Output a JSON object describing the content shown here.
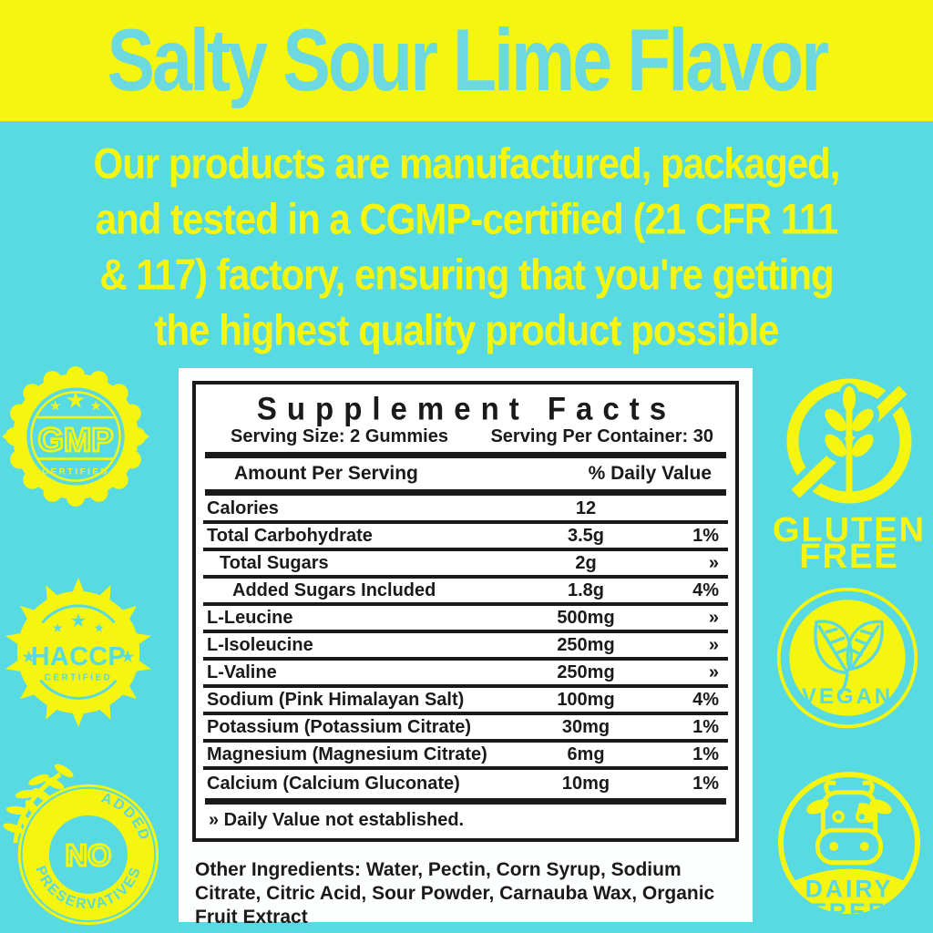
{
  "title": "Salty Sour Lime Flavor",
  "description_lines": [
    "Our products are manufactured, packaged,",
    "and tested in a CGMP-certified (21 CFR 111",
    "& 117) factory, ensuring that you're getting",
    "the highest quality product possible"
  ],
  "supplement_facts": {
    "title": "Supplement Facts",
    "serving_size": "Serving Size: 2 Gummies",
    "serving_per_container": "Serving Per Container: 30",
    "col_amount": "Amount Per Serving",
    "col_dv": "% Daily Value",
    "rows": [
      {
        "name": "Calories",
        "amount": "12",
        "dv": "",
        "indent": 0
      },
      {
        "name": "Total Carbohydrate",
        "amount": "3.5g",
        "dv": "1%",
        "indent": 0
      },
      {
        "name": "Total Sugars",
        "amount": "2g",
        "dv": "»",
        "indent": 1
      },
      {
        "name": "Added Sugars Included",
        "amount": "1.8g",
        "dv": "4%",
        "indent": 2
      },
      {
        "name": "L-Leucine",
        "amount": "500mg",
        "dv": "»",
        "indent": 0
      },
      {
        "name": "L-Isoleucine",
        "amount": "250mg",
        "dv": "»",
        "indent": 0
      },
      {
        "name": "L-Valine",
        "amount": "250mg",
        "dv": "»",
        "indent": 0
      },
      {
        "name": "Sodium (Pink Himalayan Salt)",
        "amount": "100mg",
        "dv": "4%",
        "indent": 0
      },
      {
        "name": "Potassium (Potassium Citrate)",
        "amount": "30mg",
        "dv": "1%",
        "indent": 0
      },
      {
        "name": "Magnesium (Magnesium Citrate)",
        "amount": "6mg",
        "dv": "1%",
        "indent": 0
      },
      {
        "name": "Calcium (Calcium Gluconate)",
        "amount": "10mg",
        "dv": "1%",
        "indent": 0
      }
    ],
    "footnote": "» Daily Value not established.",
    "other_ingredients": "Other Ingredients: Water, Pectin, Corn Syrup, Sodium Citrate, Citric Acid, Sour Powder, Carnauba Wax, Organic Fruit Extract"
  },
  "badges": {
    "gmp": {
      "name": "GMP",
      "sub": "CERTIFIED"
    },
    "haccp": {
      "name": "HACCP",
      "sub": "CERTIFIED"
    },
    "no_added": {
      "top": "ADDED",
      "center": "NO",
      "bottom": "PRESERVATIVES"
    },
    "gluten_free": {
      "line1": "GLUTEN",
      "line2": "FREE"
    },
    "vegan": {
      "label": "VEGAN"
    },
    "dairy_free": {
      "line1": "DAIRY",
      "line2": "FREE"
    }
  },
  "colors": {
    "yellow": "#F5F50F",
    "cyan": "#58DAE2",
    "cyan_text": "#6CD8E0",
    "ink": "#1A1A1A",
    "panel": "#FDFEFE"
  }
}
